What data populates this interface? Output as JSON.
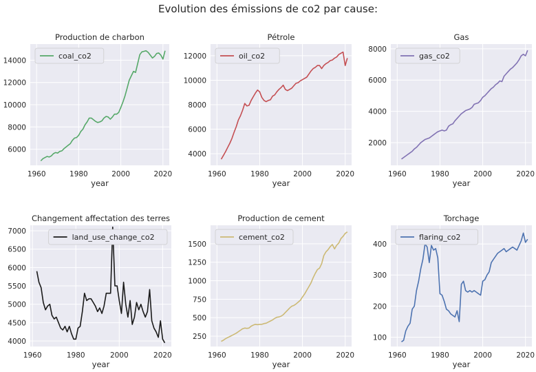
{
  "figure": {
    "title": "Evolution des émissions de co2 par cause:"
  },
  "chart_data": [
    {
      "type": "line",
      "title": "Production de charbon",
      "xlabel": "year",
      "xlim": [
        1957,
        2023
      ],
      "ylim": [
        4550,
        15450
      ],
      "xticks": [
        1960,
        1980,
        2000,
        2020
      ],
      "yticks": [
        6000,
        8000,
        10000,
        12000,
        14000
      ],
      "legend": "top-left",
      "series": [
        {
          "name": "coal_co2",
          "color": "#55a868",
          "x": [
            1962,
            1963,
            1964,
            1965,
            1966,
            1967,
            1968,
            1969,
            1970,
            1971,
            1972,
            1973,
            1974,
            1975,
            1976,
            1977,
            1978,
            1979,
            1980,
            1981,
            1982,
            1983,
            1984,
            1985,
            1986,
            1987,
            1988,
            1989,
            1990,
            1991,
            1992,
            1993,
            1994,
            1995,
            1996,
            1997,
            1998,
            1999,
            2000,
            2001,
            2002,
            2003,
            2004,
            2005,
            2006,
            2007,
            2008,
            2009,
            2010,
            2011,
            2012,
            2013,
            2014,
            2015,
            2016,
            2017,
            2018,
            2019,
            2020,
            2021
          ],
          "y": [
            4950,
            5150,
            5250,
            5350,
            5300,
            5400,
            5600,
            5700,
            5650,
            5800,
            5850,
            6050,
            6200,
            6350,
            6500,
            6800,
            7000,
            7050,
            7250,
            7600,
            7800,
            8200,
            8450,
            8800,
            8800,
            8650,
            8500,
            8400,
            8450,
            8550,
            8800,
            8950,
            8900,
            8700,
            8900,
            9150,
            9150,
            9300,
            9750,
            10250,
            10800,
            11500,
            12200,
            12600,
            13000,
            12900,
            13700,
            14500,
            14750,
            14800,
            14850,
            14700,
            14450,
            14200,
            14350,
            14600,
            14650,
            14450,
            14100,
            14850
          ]
        }
      ]
    },
    {
      "type": "line",
      "title": "Pétrole",
      "xlabel": "year",
      "xlim": [
        1957,
        2023
      ],
      "ylim": [
        3050,
        12950
      ],
      "xticks": [
        1960,
        1980,
        2000,
        2020
      ],
      "yticks": [
        4000,
        6000,
        8000,
        10000,
        12000
      ],
      "legend": "top-left",
      "series": [
        {
          "name": "oil_co2",
          "color": "#c44e52",
          "x": [
            1962,
            1963,
            1964,
            1965,
            1966,
            1967,
            1968,
            1969,
            1970,
            1971,
            1972,
            1973,
            1974,
            1975,
            1976,
            1977,
            1978,
            1979,
            1980,
            1981,
            1982,
            1983,
            1984,
            1985,
            1986,
            1987,
            1988,
            1989,
            1990,
            1991,
            1992,
            1993,
            1994,
            1995,
            1996,
            1997,
            1998,
            1999,
            2000,
            2001,
            2002,
            2003,
            2004,
            2005,
            2006,
            2007,
            2008,
            2009,
            2010,
            2011,
            2012,
            2013,
            2014,
            2015,
            2016,
            2017,
            2018,
            2019,
            2020,
            2021
          ],
          "y": [
            3550,
            3850,
            4150,
            4500,
            4850,
            5250,
            5750,
            6200,
            6750,
            7100,
            7550,
            8100,
            7900,
            7950,
            8350,
            8650,
            8950,
            9200,
            9050,
            8600,
            8350,
            8250,
            8350,
            8400,
            8700,
            8800,
            9050,
            9250,
            9400,
            9600,
            9250,
            9150,
            9250,
            9350,
            9550,
            9750,
            9800,
            9950,
            10050,
            10150,
            10250,
            10500,
            10750,
            10950,
            11050,
            11200,
            11200,
            10950,
            11200,
            11350,
            11450,
            11600,
            11650,
            11800,
            11900,
            12100,
            12200,
            12300,
            11200,
            11800
          ]
        }
      ]
    },
    {
      "type": "line",
      "title": "Gas",
      "xlabel": "year",
      "xlim": [
        1957,
        2023
      ],
      "ylim": [
        550,
        8300
      ],
      "xticks": [
        1960,
        1980,
        2000,
        2020
      ],
      "yticks": [
        2000,
        4000,
        6000,
        8000
      ],
      "legend": "top-left",
      "series": [
        {
          "name": "gas_co2",
          "color": "#8172b3",
          "x": [
            1962,
            1963,
            1964,
            1965,
            1966,
            1967,
            1968,
            1969,
            1970,
            1971,
            1972,
            1973,
            1974,
            1975,
            1976,
            1977,
            1978,
            1979,
            1980,
            1981,
            1982,
            1983,
            1984,
            1985,
            1986,
            1987,
            1988,
            1989,
            1990,
            1991,
            1992,
            1993,
            1994,
            1995,
            1996,
            1997,
            1998,
            1999,
            2000,
            2001,
            2002,
            2003,
            2004,
            2005,
            2006,
            2007,
            2008,
            2009,
            2010,
            2011,
            2012,
            2013,
            2014,
            2015,
            2016,
            2017,
            2018,
            2019,
            2020,
            2021
          ],
          "y": [
            950,
            1050,
            1150,
            1250,
            1350,
            1450,
            1600,
            1700,
            1850,
            2000,
            2100,
            2200,
            2250,
            2300,
            2400,
            2500,
            2600,
            2700,
            2750,
            2800,
            2750,
            2800,
            3050,
            3150,
            3200,
            3400,
            3550,
            3700,
            3850,
            3950,
            4050,
            4100,
            4150,
            4250,
            4450,
            4500,
            4550,
            4700,
            4900,
            5000,
            5150,
            5300,
            5450,
            5550,
            5700,
            5800,
            5950,
            5900,
            6250,
            6400,
            6550,
            6700,
            6800,
            6950,
            7100,
            7300,
            7550,
            7650,
            7550,
            7900
          ]
        }
      ]
    },
    {
      "type": "line",
      "title": "Changement affectation des terres",
      "xlabel": "year",
      "xlim": [
        1959,
        2024
      ],
      "ylim": [
        3850,
        7150
      ],
      "xticks": [
        1960,
        1980,
        2000,
        2020
      ],
      "yticks": [
        4000,
        4500,
        5000,
        5500,
        6000,
        6500,
        7000
      ],
      "legend": "top-right",
      "series": [
        {
          "name": "land_use_change_co2",
          "color": "#1a1a1a",
          "x": [
            1962,
            1963,
            1964,
            1965,
            1966,
            1967,
            1968,
            1969,
            1970,
            1971,
            1972,
            1973,
            1974,
            1975,
            1976,
            1977,
            1978,
            1979,
            1980,
            1981,
            1982,
            1983,
            1984,
            1985,
            1986,
            1987,
            1988,
            1989,
            1990,
            1991,
            1992,
            1993,
            1994,
            1995,
            1996,
            1997,
            1998,
            1999,
            2000,
            2001,
            2002,
            2003,
            2004,
            2005,
            2006,
            2007,
            2008,
            2009,
            2010,
            2011,
            2012,
            2013,
            2014,
            2015,
            2016,
            2017,
            2018,
            2019,
            2020,
            2021
          ],
          "y": [
            5900,
            5600,
            5450,
            5050,
            4850,
            4950,
            5000,
            4700,
            4600,
            4650,
            4500,
            4350,
            4300,
            4400,
            4250,
            4400,
            4200,
            4050,
            4050,
            4350,
            4400,
            4800,
            5300,
            5100,
            5150,
            5150,
            5050,
            4950,
            4800,
            4900,
            4750,
            4950,
            5300,
            5300,
            5300,
            7100,
            5500,
            5500,
            5100,
            4750,
            5600,
            5000,
            4650,
            5100,
            4450,
            4650,
            5050,
            4850,
            5000,
            4800,
            4650,
            4800,
            5400,
            4550,
            4350,
            4250,
            4100,
            4550,
            4050,
            3950
          ]
        }
      ]
    },
    {
      "type": "line",
      "title": "Production de cement",
      "xlabel": "year",
      "xlim": [
        1957,
        2023
      ],
      "ylim": [
        110,
        1750
      ],
      "xticks": [
        1960,
        1980,
        2000,
        2020
      ],
      "yticks": [
        250,
        500,
        750,
        1000,
        1250,
        1500
      ],
      "legend": "top-left",
      "series": [
        {
          "name": "cement_co2",
          "color": "#ccb974",
          "x": [
            1962,
            1963,
            1964,
            1965,
            1966,
            1967,
            1968,
            1969,
            1970,
            1971,
            1972,
            1973,
            1974,
            1975,
            1976,
            1977,
            1978,
            1979,
            1980,
            1981,
            1982,
            1983,
            1984,
            1985,
            1986,
            1987,
            1988,
            1989,
            1990,
            1991,
            1992,
            1993,
            1994,
            1995,
            1996,
            1997,
            1998,
            1999,
            2000,
            2001,
            2002,
            2003,
            2004,
            2005,
            2006,
            2007,
            2008,
            2009,
            2010,
            2011,
            2012,
            2013,
            2014,
            2015,
            2016,
            2017,
            2018,
            2019,
            2020,
            2021
          ],
          "y": [
            180,
            195,
            215,
            230,
            245,
            260,
            275,
            290,
            310,
            330,
            350,
            360,
            355,
            360,
            385,
            400,
            410,
            405,
            410,
            410,
            420,
            425,
            440,
            455,
            470,
            490,
            505,
            510,
            520,
            540,
            570,
            600,
            630,
            655,
            665,
            685,
            710,
            735,
            780,
            820,
            870,
            920,
            970,
            1040,
            1100,
            1150,
            1170,
            1230,
            1340,
            1390,
            1420,
            1460,
            1490,
            1430,
            1480,
            1510,
            1570,
            1600,
            1640,
            1660
          ]
        }
      ]
    },
    {
      "type": "line",
      "title": "Torchage",
      "xlabel": "year",
      "xlim": [
        1957,
        2023
      ],
      "ylim": [
        70,
        460
      ],
      "xticks": [
        1960,
        1980,
        2000,
        2020
      ],
      "yticks": [
        100,
        200,
        300,
        400
      ],
      "legend": "top-left",
      "series": [
        {
          "name": "flaring_co2",
          "color": "#4c72b0",
          "x": [
            1962,
            1963,
            1964,
            1965,
            1966,
            1967,
            1968,
            1969,
            1970,
            1971,
            1972,
            1973,
            1974,
            1975,
            1976,
            1977,
            1978,
            1979,
            1980,
            1981,
            1982,
            1983,
            1984,
            1985,
            1986,
            1987,
            1988,
            1989,
            1990,
            1991,
            1992,
            1993,
            1994,
            1995,
            1996,
            1997,
            1998,
            1999,
            2000,
            2001,
            2002,
            2003,
            2004,
            2005,
            2006,
            2007,
            2008,
            2009,
            2010,
            2011,
            2012,
            2013,
            2014,
            2015,
            2016,
            2017,
            2018,
            2019,
            2020,
            2021
          ],
          "y": [
            85,
            90,
            120,
            135,
            145,
            190,
            200,
            250,
            280,
            320,
            350,
            400,
            390,
            340,
            395,
            380,
            385,
            355,
            240,
            235,
            215,
            190,
            185,
            175,
            170,
            165,
            185,
            150,
            270,
            280,
            250,
            245,
            250,
            245,
            250,
            245,
            240,
            235,
            280,
            285,
            300,
            310,
            340,
            350,
            360,
            370,
            375,
            380,
            385,
            375,
            380,
            385,
            390,
            385,
            380,
            395,
            410,
            435,
            405,
            415
          ]
        }
      ]
    }
  ]
}
